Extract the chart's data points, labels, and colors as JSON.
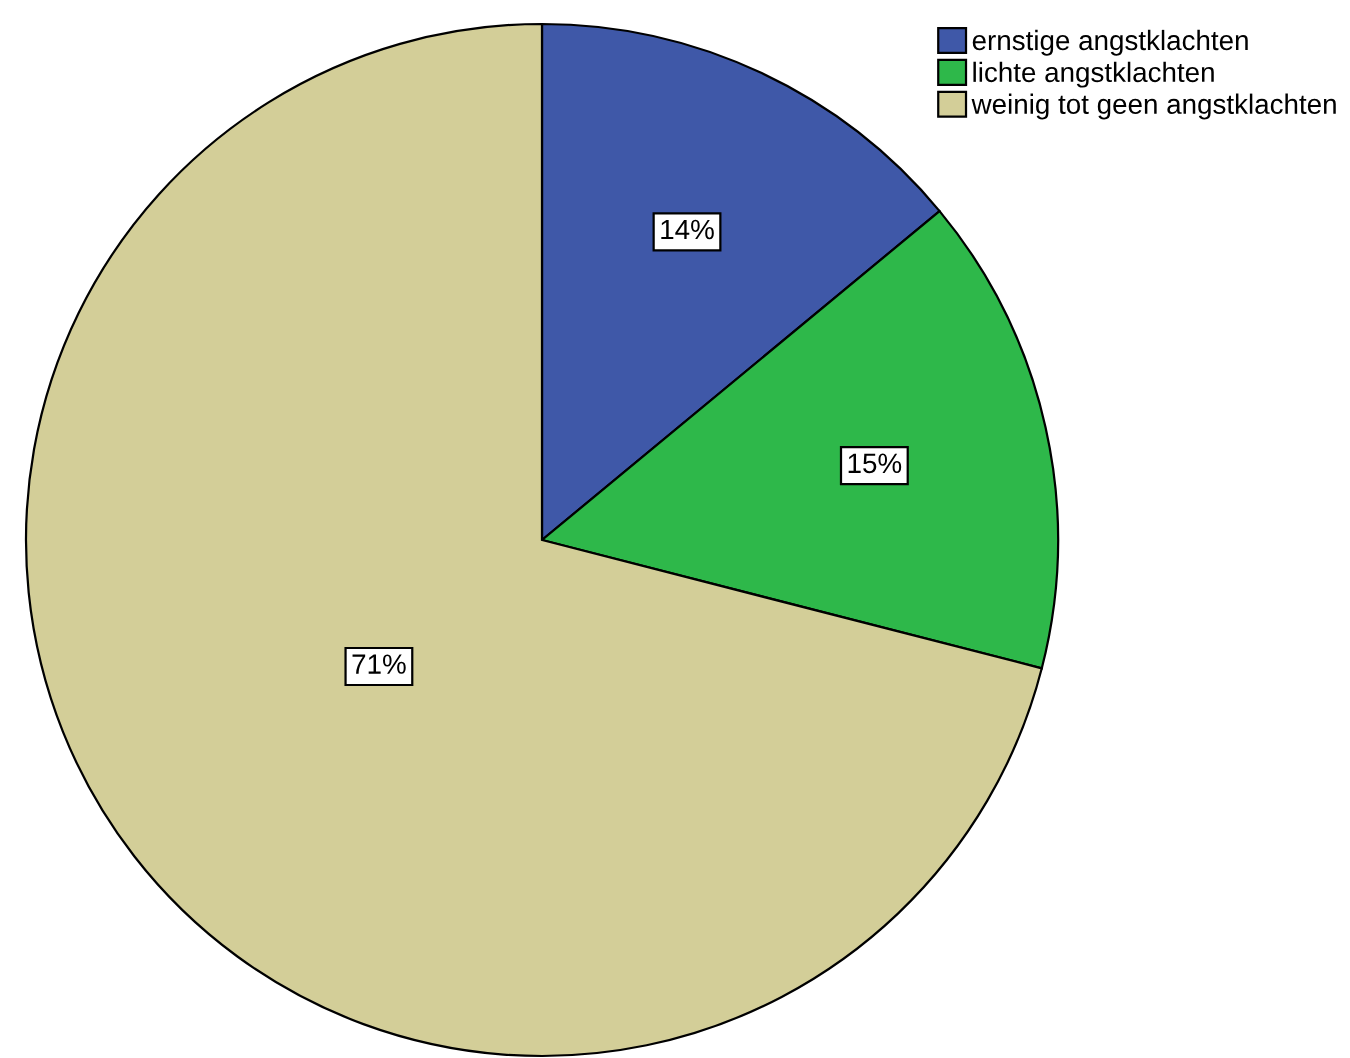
{
  "chart_data": {
    "type": "pie",
    "categories": [
      "ernstige angstklachten",
      "lichte angstklachten",
      "weinig tot geen angstklachten"
    ],
    "values": [
      14,
      15,
      71
    ],
    "colors": [
      "#3f58a8",
      "#2eb84a",
      "#d3ce98"
    ],
    "value_labels": [
      "14%",
      "15%",
      "71%"
    ],
    "legend": "top right"
  }
}
